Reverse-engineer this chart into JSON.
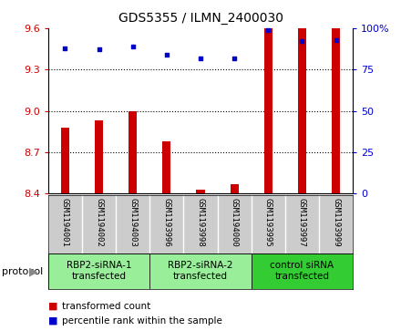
{
  "title": "GDS5355 / ILMN_2400030",
  "samples": [
    "GSM1194001",
    "GSM1194002",
    "GSM1194003",
    "GSM1193996",
    "GSM1193998",
    "GSM1194000",
    "GSM1193995",
    "GSM1193997",
    "GSM1193999"
  ],
  "bar_values": [
    8.88,
    8.93,
    9.0,
    8.78,
    8.43,
    8.47,
    9.6,
    9.6,
    9.6
  ],
  "dot_values": [
    88,
    87,
    89,
    84,
    82,
    82,
    99,
    92,
    93
  ],
  "bar_color": "#cc0000",
  "dot_color": "#0000cc",
  "ylim_left": [
    8.4,
    9.6
  ],
  "ylim_right": [
    0,
    100
  ],
  "yticks_left": [
    8.4,
    8.7,
    9.0,
    9.3,
    9.6
  ],
  "yticks_right": [
    0,
    25,
    50,
    75,
    100
  ],
  "groups": [
    {
      "label": "RBP2-siRNA-1\ntransfected",
      "start": 0,
      "end": 3,
      "color": "#99ee99"
    },
    {
      "label": "RBP2-siRNA-2\ntransfected",
      "start": 3,
      "end": 6,
      "color": "#99ee99"
    },
    {
      "label": "control siRNA\ntransfected",
      "start": 6,
      "end": 9,
      "color": "#33cc33"
    }
  ],
  "legend_bar_label": "transformed count",
  "legend_dot_label": "percentile rank within the sample",
  "protocol_label": "protocol",
  "tick_area_color": "#cccccc",
  "bar_width": 0.25,
  "grid_yticks": [
    8.7,
    9.0,
    9.3
  ]
}
